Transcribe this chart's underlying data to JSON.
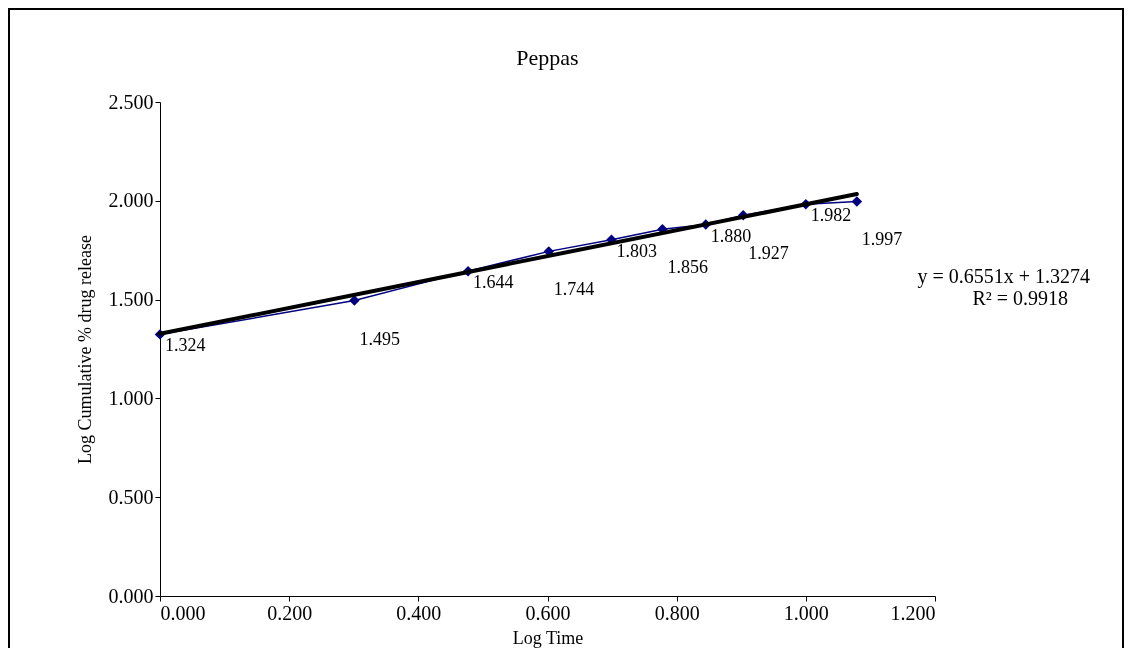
{
  "chart_data": {
    "type": "line",
    "title": "Peppas",
    "xlabel": "Log Time",
    "ylabel": "Log Cumulative % drug release",
    "xlim": [
      0,
      1.2
    ],
    "xticks": [
      {
        "value": 0,
        "label": "0.000"
      },
      {
        "value": 0.2,
        "label": "0.200"
      },
      {
        "value": 0.4,
        "label": "0.400"
      },
      {
        "value": 0.6,
        "label": "0.600"
      },
      {
        "value": 0.8,
        "label": "0.800"
      },
      {
        "value": 1,
        "label": "1.000"
      },
      {
        "value": 1.2,
        "label": "1.200"
      }
    ],
    "ylim": [
      0,
      2.5
    ],
    "yticks": [
      {
        "value": 0,
        "label": "0.000"
      },
      {
        "value": 0.5,
        "label": "0.500"
      },
      {
        "value": 1,
        "label": "1.000"
      },
      {
        "value": 1.5,
        "label": "1.500"
      },
      {
        "value": 2,
        "label": "2.000"
      },
      {
        "value": 2.5,
        "label": "2.500"
      }
    ],
    "grid": false,
    "marker": "diamond",
    "line_style": "solid",
    "series": [
      {
        "color": "#000080",
        "x": [
          0,
          0.301,
          0.477,
          0.602,
          0.699,
          0.778,
          0.845,
          0.903,
          1.0,
          1.079
        ],
        "values": [
          1.324,
          1.495,
          1.644,
          1.744,
          1.803,
          1.856,
          1.88,
          1.927,
          1.982,
          1.997
        ],
        "value_labels": [
          "1.324",
          "1.495",
          "1.644",
          "1.744",
          "1.803",
          "1.856",
          "1.880",
          "1.927",
          "1.982",
          "1.997"
        ]
      },
      {
        "type": "line",
        "color": "#000000",
        "marker": "none",
        "x": [
          0,
          1.079
        ],
        "values": [
          1.327,
          2.034
        ]
      }
    ],
    "annotations": [
      "y = 0.6551x + 1.3274",
      "R² = 0.9918"
    ]
  }
}
